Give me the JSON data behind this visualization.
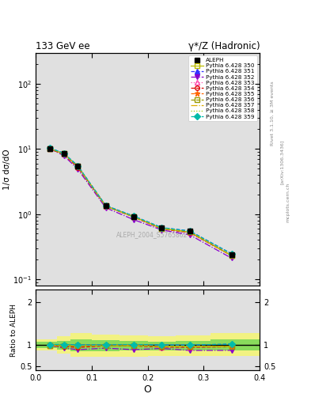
{
  "title_left": "133 GeV ee",
  "title_right": "γ*/Z (Hadronic)",
  "ylabel_main": "1/σ dσ/dO",
  "ylabel_ratio": "Ratio to ALEPH",
  "xlabel": "O",
  "rivet_label": "Rivet 3.1.10, ≥ 3M events",
  "arxiv_label": "[arXiv:1306.3436]",
  "mcplots_label": "mcplots.cern.ch",
  "watermark": "ALEPH_2004_S5765862",
  "aleph_x": [
    0.025,
    0.05,
    0.075,
    0.125,
    0.175,
    0.225,
    0.275,
    0.35
  ],
  "aleph_y": [
    10.2,
    8.5,
    5.5,
    1.35,
    0.92,
    0.62,
    0.55,
    0.24
  ],
  "mc_x": [
    0.025,
    0.05,
    0.075,
    0.125,
    0.175,
    0.225,
    0.275,
    0.35
  ],
  "mc_350_y": [
    10.1,
    8.4,
    5.45,
    1.33,
    0.91,
    0.6,
    0.53,
    0.23
  ],
  "mc_351_y": [
    10.3,
    8.6,
    5.5,
    1.35,
    0.93,
    0.62,
    0.55,
    0.245
  ],
  "mc_352_y": [
    10.1,
    7.9,
    4.9,
    1.25,
    0.82,
    0.57,
    0.48,
    0.21
  ],
  "mc_353_y": [
    10.0,
    8.3,
    5.3,
    1.32,
    0.9,
    0.59,
    0.52,
    0.23
  ],
  "mc_354_y": [
    10.0,
    8.2,
    5.2,
    1.32,
    0.9,
    0.59,
    0.52,
    0.23
  ],
  "mc_355_y": [
    10.1,
    8.4,
    5.4,
    1.33,
    0.91,
    0.6,
    0.53,
    0.23
  ],
  "mc_356_y": [
    10.1,
    8.4,
    5.4,
    1.33,
    0.91,
    0.6,
    0.53,
    0.23
  ],
  "mc_357_y": [
    10.1,
    8.4,
    5.4,
    1.33,
    0.91,
    0.6,
    0.53,
    0.23
  ],
  "mc_358_y": [
    10.1,
    8.4,
    5.4,
    1.33,
    0.91,
    0.6,
    0.53,
    0.23
  ],
  "mc_359_y": [
    10.3,
    8.6,
    5.5,
    1.35,
    0.93,
    0.62,
    0.55,
    0.245
  ],
  "band_x_edges": [
    0.0,
    0.0375,
    0.0625,
    0.1,
    0.15,
    0.2,
    0.25,
    0.3125,
    0.4
  ],
  "band_yellow_lo": [
    0.87,
    0.8,
    0.72,
    0.72,
    0.73,
    0.75,
    0.75,
    0.75
  ],
  "band_yellow_hi": [
    1.13,
    1.2,
    1.28,
    1.25,
    1.22,
    1.2,
    1.22,
    1.28
  ],
  "band_green_lo": [
    0.93,
    0.9,
    0.86,
    0.86,
    0.88,
    0.88,
    0.88,
    0.88
  ],
  "band_green_hi": [
    1.07,
    1.1,
    1.14,
    1.11,
    1.09,
    1.08,
    1.1,
    1.14
  ],
  "series": [
    {
      "label": "Pythia 6.428 350",
      "color": "#bbbb00",
      "linestyle": "-",
      "marker": "s",
      "mfc": "none",
      "ms": 4
    },
    {
      "label": "Pythia 6.428 351",
      "color": "#3333ff",
      "linestyle": "--",
      "marker": "^",
      "mfc": "#3333ff",
      "ms": 4
    },
    {
      "label": "Pythia 6.428 352",
      "color": "#8800cc",
      "linestyle": "-.",
      "marker": "v",
      "mfc": "#8800cc",
      "ms": 4
    },
    {
      "label": "Pythia 6.428 353",
      "color": "#ff44aa",
      "linestyle": ":",
      "marker": "^",
      "mfc": "none",
      "ms": 4
    },
    {
      "label": "Pythia 6.428 354",
      "color": "#dd0000",
      "linestyle": "--",
      "marker": "o",
      "mfc": "none",
      "ms": 4
    },
    {
      "label": "Pythia 6.428 355",
      "color": "#ff6600",
      "linestyle": "--",
      "marker": "*",
      "mfc": "#ff6600",
      "ms": 5
    },
    {
      "label": "Pythia 6.428 356",
      "color": "#999900",
      "linestyle": "--",
      "marker": "s",
      "mfc": "none",
      "ms": 4
    },
    {
      "label": "Pythia 6.428 357",
      "color": "#ddaa00",
      "linestyle": "-.",
      "marker": "",
      "mfc": "none",
      "ms": 4
    },
    {
      "label": "Pythia 6.428 358",
      "color": "#99cc00",
      "linestyle": ":",
      "marker": "",
      "mfc": "none",
      "ms": 4
    },
    {
      "label": "Pythia 6.428 359",
      "color": "#00bbaa",
      "linestyle": "--",
      "marker": "D",
      "mfc": "#00bbaa",
      "ms": 4
    }
  ],
  "mc_keys": [
    "mc_350_y",
    "mc_351_y",
    "mc_352_y",
    "mc_353_y",
    "mc_354_y",
    "mc_355_y",
    "mc_356_y",
    "mc_357_y",
    "mc_358_y",
    "mc_359_y"
  ],
  "xlim": [
    0.0,
    0.4
  ],
  "ylim_main": [
    0.08,
    300
  ],
  "ylim_ratio": [
    0.4,
    2.3
  ],
  "ratio_yticks": [
    0.5,
    1.0,
    2.0
  ],
  "ratio_yticklabels": [
    "0.5",
    "1",
    "2"
  ],
  "yellow_color": "#ffff44",
  "green_color": "#44cc44",
  "band_alpha": 0.6,
  "bg_color": "#ffffff",
  "panel_bg": "#e0e0e0"
}
